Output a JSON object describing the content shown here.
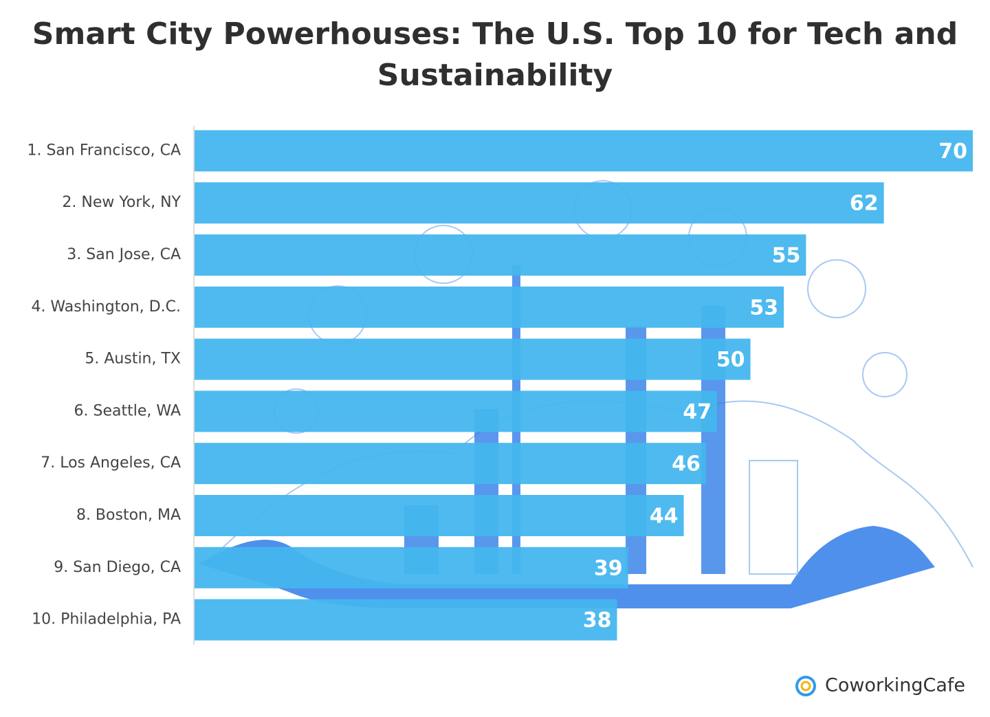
{
  "chart_data": {
    "type": "hbar",
    "title": "Smart City Powerhouses: The U.S. Top 10 for Tech and Sustainability",
    "categories": [
      "1. San Francisco, CA",
      "2. New York, NY",
      "3. San Jose, CA",
      "4. Washington, D.C.",
      "5. Austin, TX",
      "6. Seattle, WA",
      "7. Los Angeles, CA",
      "8. Boston, MA",
      "9. San Diego, CA",
      "10. Philadelphia, PA"
    ],
    "values": [
      70,
      62,
      55,
      53,
      50,
      47,
      46,
      44,
      39,
      38
    ],
    "color": "#44b6ee",
    "xlim": [
      0,
      70
    ],
    "logo": "CoworkingCafe"
  }
}
